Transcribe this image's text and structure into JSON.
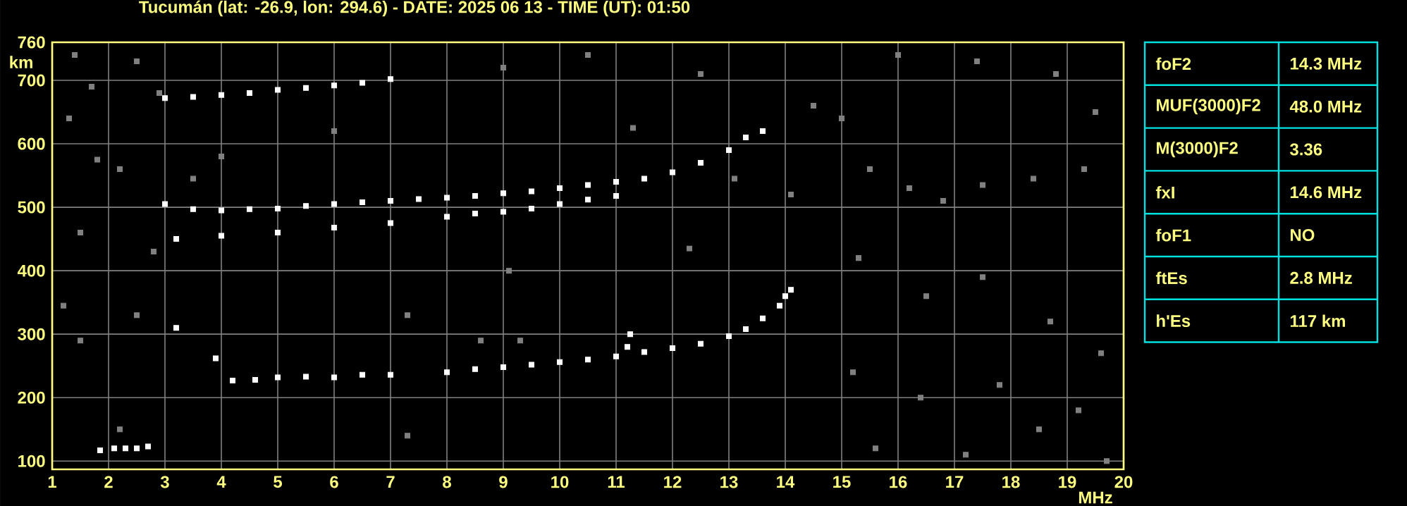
{
  "chart_data": [
    {
      "type": "scatter",
      "title": "Tucumán (lat: -26.9, lon: 294.6) - DATE: 2025 06 13 - TIME (UT): 01:50",
      "xlabel": "MHz",
      "ylabel": "km",
      "xlim": [
        1,
        20
      ],
      "ylim": [
        87,
        760
      ],
      "xticks": [
        1,
        2,
        3,
        4,
        5,
        6,
        7,
        8,
        9,
        10,
        11,
        12,
        13,
        14,
        15,
        16,
        17,
        18,
        19,
        20
      ],
      "yticks": [
        100,
        200,
        300,
        400,
        500,
        600,
        700,
        760
      ],
      "grid": true,
      "marker": "square",
      "series": [
        {
          "color": "#ffffff",
          "x": [
            1.85,
            2.1,
            2.3,
            2.5,
            2.7,
            4.2,
            4.6,
            5,
            5.5,
            6,
            6.5,
            7,
            8,
            8.5,
            9,
            9.5,
            10,
            10.5,
            11,
            11.2,
            11.25,
            11.5,
            12,
            12.5,
            13,
            13.3,
            13.6,
            13.9,
            14.0,
            14.1,
            3.2,
            3.9,
            3,
            3.5,
            4,
            4.5,
            5,
            5.5,
            6,
            6.5,
            7,
            7.5,
            8,
            8.5,
            9,
            9.5,
            10,
            10.5,
            11,
            11.5,
            12,
            12.5,
            13,
            13.3,
            13.6,
            3.2,
            4,
            5,
            6,
            7,
            8,
            8.5,
            9,
            9.5,
            10,
            10.5,
            11,
            3,
            3.5,
            4,
            4.5,
            5,
            5.5,
            6,
            6.5,
            7
          ],
          "values": [
            117,
            120,
            120,
            120,
            123,
            227,
            228,
            232,
            233,
            232,
            236,
            236,
            240,
            245,
            248,
            252,
            256,
            260,
            265,
            280,
            300,
            272,
            278,
            285,
            297,
            308,
            325,
            345,
            360,
            370,
            310,
            262,
            505,
            497,
            495,
            497,
            498,
            502,
            505,
            508,
            510,
            513,
            515,
            518,
            522,
            525,
            530,
            535,
            540,
            545,
            555,
            570,
            590,
            610,
            620,
            450,
            455,
            460,
            468,
            475,
            485,
            490,
            493,
            498,
            505,
            512,
            518,
            672,
            674,
            677,
            680,
            685,
            688,
            692,
            696,
            702
          ]
        },
        {
          "color": "#808080",
          "x": [
            1.4,
            1.7,
            2.5,
            1.3,
            2.9,
            1.8,
            2.2,
            3.5,
            1.5,
            2.8,
            1.2,
            2.5,
            1.5,
            2.2,
            7.3,
            7.3,
            8.6,
            9.3,
            9.1,
            11.3,
            12.3,
            13.1,
            14.1,
            15,
            15.5,
            16.2,
            16.8,
            17.5,
            18.4,
            19.3,
            15.3,
            16.5,
            17.5,
            18.7,
            19.6,
            15.2,
            16.4,
            17.8,
            19.2,
            15.6,
            17.2,
            18.5,
            19.7,
            16,
            17.4,
            18.8,
            19.5,
            14.5,
            12.5,
            10.5,
            9,
            6,
            4
          ],
          "values": [
            740,
            690,
            730,
            640,
            680,
            575,
            560,
            545,
            460,
            430,
            345,
            330,
            290,
            150,
            330,
            140,
            290,
            290,
            400,
            625,
            435,
            545,
            520,
            640,
            560,
            530,
            510,
            535,
            545,
            560,
            420,
            360,
            390,
            320,
            270,
            240,
            200,
            220,
            180,
            120,
            110,
            150,
            100,
            740,
            730,
            710,
            650,
            660,
            710,
            740,
            720,
            620,
            580
          ]
        }
      ]
    },
    {
      "type": "other",
      "categories": [
        "foF2",
        "MUF(3000)F2",
        "M(3000)F2",
        "fxI",
        "foF1",
        "ftEs",
        "h'Es"
      ],
      "value_labels": [
        "14.3 MHz",
        "48.0 MHz",
        "3.36",
        "14.6 MHz",
        "NO",
        "2.8 MHz",
        "117 km"
      ]
    }
  ]
}
